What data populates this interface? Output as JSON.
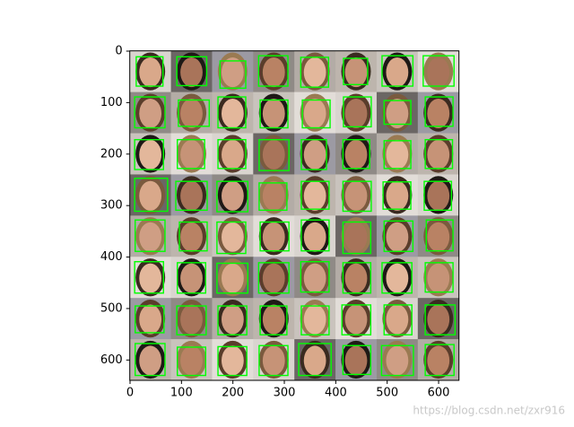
{
  "chart_data": {
    "type": "image",
    "xlim": [
      -0.5,
      639.5
    ],
    "ylim": [
      639.5,
      -0.5
    ],
    "xticks": [
      0,
      100,
      200,
      300,
      400,
      500,
      600
    ],
    "yticks": [
      0,
      100,
      200,
      300,
      400,
      500,
      600
    ],
    "box_color": "#00ff00",
    "boxes": [
      [
        12,
        11,
        64,
        68
      ],
      [
        91,
        11,
        149,
        67
      ],
      [
        175,
        19,
        225,
        72
      ],
      [
        250,
        9,
        307,
        68
      ],
      [
        332,
        12,
        386,
        70
      ],
      [
        415,
        14,
        462,
        65
      ],
      [
        490,
        9,
        550,
        68
      ],
      [
        570,
        9,
        630,
        68
      ],
      [
        9,
        89,
        68,
        149
      ],
      [
        94,
        95,
        154,
        146
      ],
      [
        171,
        89,
        225,
        149
      ],
      [
        253,
        95,
        307,
        149
      ],
      [
        335,
        95,
        389,
        149
      ],
      [
        415,
        89,
        469,
        147
      ],
      [
        494,
        96,
        546,
        142
      ],
      [
        574,
        89,
        628,
        146
      ],
      [
        9,
        172,
        65,
        230
      ],
      [
        92,
        172,
        145,
        228
      ],
      [
        171,
        172,
        225,
        228
      ],
      [
        251,
        172,
        309,
        232
      ],
      [
        333,
        172,
        382,
        230
      ],
      [
        414,
        172,
        466,
        228
      ],
      [
        494,
        174,
        546,
        228
      ],
      [
        574,
        172,
        627,
        228
      ],
      [
        9,
        247,
        73,
        311
      ],
      [
        89,
        253,
        150,
        309
      ],
      [
        169,
        253,
        229,
        312
      ],
      [
        251,
        256,
        305,
        309
      ],
      [
        333,
        253,
        387,
        307
      ],
      [
        414,
        253,
        469,
        311
      ],
      [
        492,
        254,
        546,
        307
      ],
      [
        572,
        253,
        625,
        309
      ],
      [
        10,
        328,
        68,
        389
      ],
      [
        96,
        332,
        150,
        388
      ],
      [
        169,
        332,
        225,
        393
      ],
      [
        253,
        332,
        309,
        388
      ],
      [
        333,
        328,
        387,
        388
      ],
      [
        414,
        332,
        468,
        393
      ],
      [
        494,
        330,
        550,
        389
      ],
      [
        576,
        328,
        628,
        388
      ],
      [
        9,
        409,
        65,
        470
      ],
      [
        92,
        411,
        147,
        470
      ],
      [
        169,
        412,
        229,
        470
      ],
      [
        250,
        411,
        309,
        470
      ],
      [
        332,
        409,
        387,
        468
      ],
      [
        414,
        411,
        468,
        470
      ],
      [
        490,
        411,
        548,
        470
      ],
      [
        574,
        411,
        628,
        468
      ],
      [
        10,
        495,
        66,
        547
      ],
      [
        91,
        495,
        148,
        551
      ],
      [
        171,
        495,
        227,
        551
      ],
      [
        253,
        495,
        305,
        551
      ],
      [
        333,
        495,
        387,
        551
      ],
      [
        412,
        493,
        468,
        551
      ],
      [
        494,
        493,
        548,
        551
      ],
      [
        574,
        493,
        632,
        551
      ],
      [
        10,
        568,
        68,
        630
      ],
      [
        92,
        575,
        147,
        630
      ],
      [
        171,
        574,
        227,
        630
      ],
      [
        251,
        572,
        307,
        630
      ],
      [
        328,
        568,
        391,
        630
      ],
      [
        414,
        572,
        468,
        628
      ],
      [
        489,
        572,
        551,
        630
      ],
      [
        574,
        570,
        630,
        630
      ]
    ],
    "watermark": "https://blog.csdn.net/zxr916"
  }
}
